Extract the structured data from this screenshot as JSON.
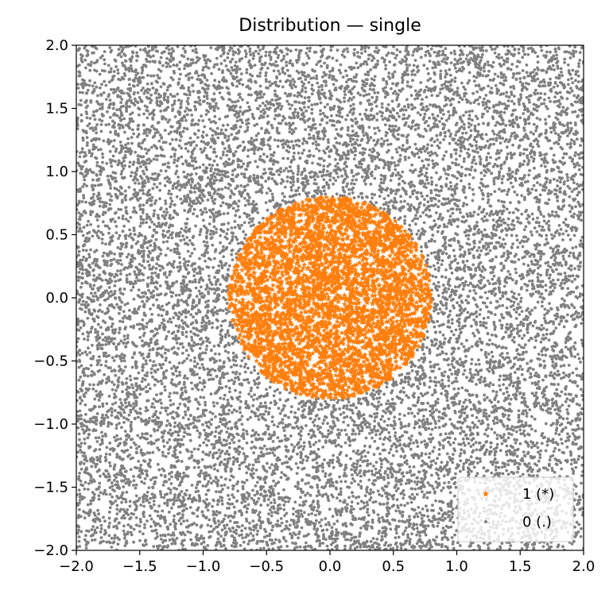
{
  "chart_data": {
    "type": "scatter",
    "title": "Distribution — single",
    "xlabel": "",
    "ylabel": "",
    "xlim": [
      -2.0,
      2.0
    ],
    "ylim": [
      -2.0,
      2.0
    ],
    "xticks": [
      "−2.0",
      "−1.5",
      "−1.0",
      "−0.5",
      "0.0",
      "0.5",
      "1.0",
      "1.5",
      "2.0"
    ],
    "yticks": [
      "−2.0",
      "−1.5",
      "−1.0",
      "−0.5",
      "0.0",
      "0.5",
      "1.0",
      "1.5",
      "2.0"
    ],
    "xtick_values": [
      -2.0,
      -1.5,
      -1.0,
      -0.5,
      0.0,
      0.5,
      1.0,
      1.5,
      2.0
    ],
    "ytick_values": [
      -2.0,
      -1.5,
      -1.0,
      -0.5,
      0.0,
      0.5,
      1.0,
      1.5,
      2.0
    ],
    "grid": false,
    "legend_position": "bottom-right",
    "series": [
      {
        "name": "1 (*)",
        "color": "#ff7f0e",
        "marker": "star",
        "region": "inside circle centered at (0.0, 0.0) with radius 0.8",
        "center": [
          0.0,
          0.0
        ],
        "radius": 0.8
      },
      {
        "name": "0 (.)",
        "color": "#808080",
        "marker": "point",
        "region": "uniform over [-2, 2] × [-2, 2] outside the circle"
      }
    ]
  }
}
